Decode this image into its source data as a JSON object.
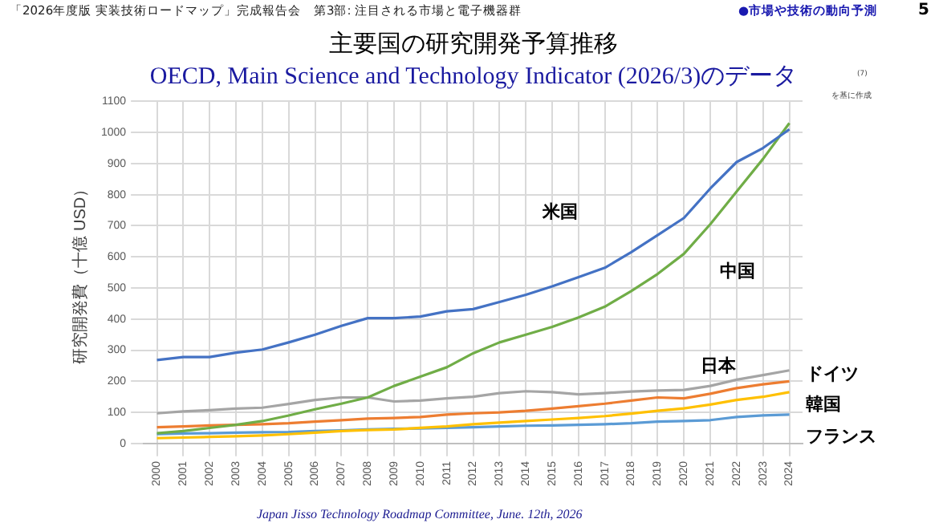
{
  "chart_data": {
    "type": "line",
    "title": "主要国の研究開発予算推移",
    "subtitle": "OECD, Main Science and Technology Indicator (2026/3)のデータ",
    "ylabel": "研究開発費（十億 USD）",
    "categories": [
      "2000",
      "2001",
      "2002",
      "2003",
      "2004",
      "2005",
      "2006",
      "2007",
      "2008",
      "2009",
      "2010",
      "2011",
      "2012",
      "2013",
      "2014",
      "2015",
      "2016",
      "2017",
      "2018",
      "2019",
      "2020",
      "2021",
      "2022",
      "2023",
      "2024"
    ],
    "series": [
      {
        "name": "米国",
        "color": "#4472c4",
        "values": [
          268,
          278,
          278,
          292,
          302,
          325,
          350,
          378,
          403,
          403,
          408,
          425,
          432,
          455,
          478,
          505,
          535,
          565,
          615,
          670,
          725,
          820,
          905,
          950,
          1010
        ]
      },
      {
        "name": "中国",
        "color": "#70ad47",
        "values": [
          33,
          40,
          50,
          60,
          72,
          90,
          110,
          128,
          148,
          185,
          215,
          245,
          290,
          325,
          350,
          375,
          405,
          440,
          490,
          545,
          610,
          705,
          810,
          915,
          1030
        ]
      },
      {
        "name": "日本",
        "color": "#a5a5a5",
        "values": [
          97,
          103,
          107,
          112,
          115,
          127,
          140,
          148,
          148,
          135,
          138,
          145,
          150,
          162,
          168,
          165,
          158,
          162,
          167,
          170,
          172,
          185,
          205,
          220,
          235
        ]
      },
      {
        "name": "ドイツ",
        "color": "#ed7d31",
        "values": [
          52,
          55,
          58,
          60,
          62,
          65,
          70,
          75,
          80,
          82,
          85,
          93,
          97,
          100,
          105,
          112,
          120,
          128,
          138,
          148,
          145,
          160,
          178,
          190,
          200
        ]
      },
      {
        "name": "韓国",
        "color": "#ffc000",
        "values": [
          17,
          19,
          21,
          23,
          26,
          30,
          35,
          40,
          43,
          45,
          50,
          55,
          62,
          67,
          72,
          77,
          82,
          88,
          96,
          105,
          113,
          125,
          140,
          150,
          165
        ]
      },
      {
        "name": "フランス",
        "color": "#5b9bd5",
        "values": [
          30,
          32,
          33,
          35,
          36,
          37,
          40,
          42,
          45,
          47,
          48,
          50,
          52,
          55,
          57,
          58,
          60,
          62,
          65,
          70,
          72,
          75,
          85,
          90,
          93
        ]
      }
    ],
    "ylim": [
      0,
      1100
    ],
    "yticks": [
      0,
      100,
      200,
      300,
      400,
      500,
      600,
      700,
      800,
      900,
      1000,
      1100
    ],
    "grid": true,
    "legend": false,
    "marker": "none",
    "line_style": "solid",
    "annotations": [
      "「2026年度版 実装技術ロードマップ」完成報告会　第3部: 注目される市場と電子機器群",
      "●市場や技術の動向予測",
      "5",
      "(7)",
      "を基に作成",
      "Japan Jisso Technology Roadmap Committee, June. 12th, 2026"
    ]
  }
}
